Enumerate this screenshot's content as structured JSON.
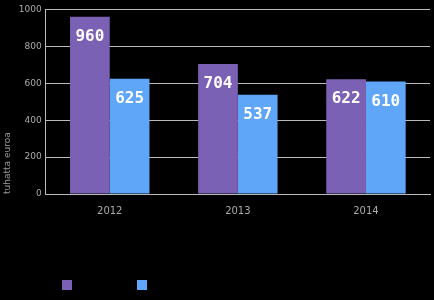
{
  "chart_data": {
    "type": "bar",
    "categories": [
      "2012",
      "2013",
      "2014"
    ],
    "series": [
      {
        "color": "#7b61b3",
        "values": [
          960,
          704,
          622
        ]
      },
      {
        "color": "#5fa5f8",
        "values": [
          625,
          537,
          610
        ]
      }
    ],
    "y_label": "tuhatta euroa",
    "ylim": [
      0,
      1000
    ],
    "yticks": [
      0,
      200,
      400,
      600,
      800,
      1000
    ],
    "grid": true,
    "legend": "bottom",
    "data_labels": true
  }
}
